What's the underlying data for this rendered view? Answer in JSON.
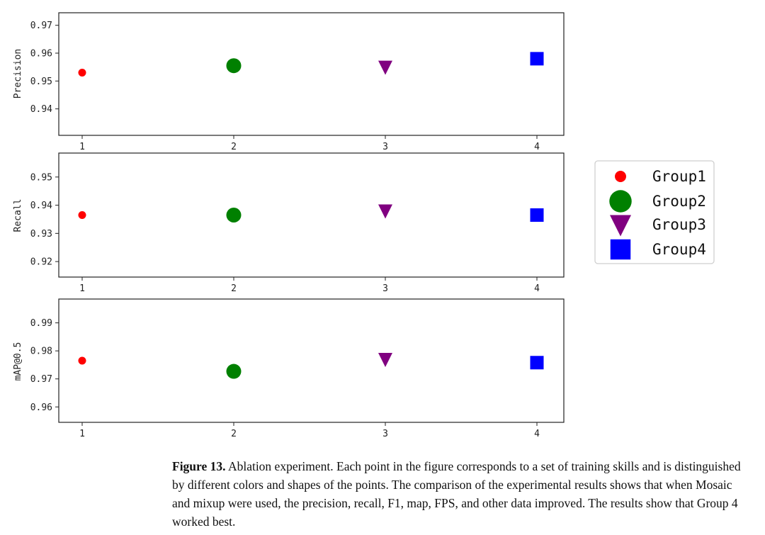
{
  "chart_data": [
    {
      "type": "scatter",
      "ylabel": "Precision",
      "x_ticks": [
        "1",
        "2",
        "3",
        "4"
      ],
      "y_ticks": [
        "0.94",
        "0.95",
        "0.96",
        "0.97"
      ],
      "ylim": [
        0.9305,
        0.9745
      ],
      "grid": false,
      "series": [
        {
          "name": "Group1",
          "x": 1,
          "y": 0.953
        },
        {
          "name": "Group2",
          "x": 2,
          "y": 0.9555
        },
        {
          "name": "Group3",
          "x": 3,
          "y": 0.955
        },
        {
          "name": "Group4",
          "x": 4,
          "y": 0.958
        }
      ]
    },
    {
      "type": "scatter",
      "ylabel": "Recall",
      "x_ticks": [
        "1",
        "2",
        "3",
        "4"
      ],
      "y_ticks": [
        "0.92",
        "0.93",
        "0.94",
        "0.95"
      ],
      "ylim": [
        0.9145,
        0.9585
      ],
      "grid": false,
      "series": [
        {
          "name": "Group1",
          "x": 1,
          "y": 0.9365
        },
        {
          "name": "Group2",
          "x": 2,
          "y": 0.9365
        },
        {
          "name": "Group3",
          "x": 3,
          "y": 0.938
        },
        {
          "name": "Group4",
          "x": 4,
          "y": 0.9365
        }
      ]
    },
    {
      "type": "scatter",
      "ylabel": "mAP@0.5",
      "x_ticks": [
        "1",
        "2",
        "3",
        "4"
      ],
      "y_ticks": [
        "0.96",
        "0.97",
        "0.98",
        "0.99"
      ],
      "ylim": [
        0.9545,
        0.9985
      ],
      "grid": false,
      "series": [
        {
          "name": "Group1",
          "x": 1,
          "y": 0.9765
        },
        {
          "name": "Group2",
          "x": 2,
          "y": 0.9727
        },
        {
          "name": "Group3",
          "x": 3,
          "y": 0.977
        },
        {
          "name": "Group4",
          "x": 4,
          "y": 0.9758
        }
      ]
    }
  ],
  "legend": {
    "placement": "right",
    "entries": [
      {
        "label": "Group1",
        "color": "#ff0000",
        "marker": "small-circle"
      },
      {
        "label": "Group2",
        "color": "#008000",
        "marker": "large-circle"
      },
      {
        "label": "Group3",
        "color": "#800080",
        "marker": "down-triangle"
      },
      {
        "label": "Group4",
        "color": "#0000ff",
        "marker": "square"
      }
    ]
  },
  "caption": {
    "label": "Figure 13.",
    "text": "Ablation experiment. Each point in the figure corresponds to a set of training skills and is distinguished by different colors and shapes of the points. The comparison of the experimental results shows that when Mosaic and mixup were used, the precision, recall, F1, map, FPS, and other data improved. The results show that Group 4 worked best."
  }
}
